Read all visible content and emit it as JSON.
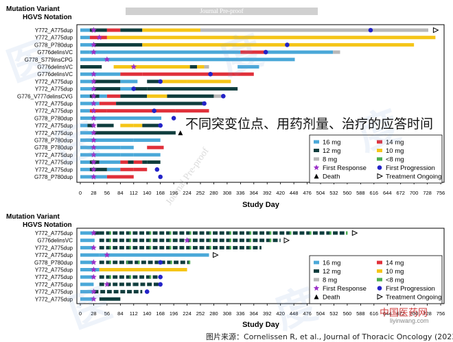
{
  "page": {
    "journal_banner": "Journal Pre-proof",
    "overlay_text_cn": "不同突变位点、用药剂量、治疗的应答时间",
    "source_text": "图片来源：Cornelissen R, et al., Journal of Thoracic Oncology (2023).",
    "diagonal_watermark": "Journal Pre-proof",
    "site_watermark": "中国医药网",
    "site_url": "liyinwang.com",
    "watermark_chars": [
      "医",
      "度",
      "医",
      "度",
      "医",
      "度"
    ]
  },
  "colors": {
    "16 mg": "#4aa8d8",
    "14 mg": "#e0303a",
    "12 mg": "#0f3d3d",
    "10 mg": "#f5c518",
    "8 mg": "#b8b8b8",
    "<8 mg": "#4caf50",
    "first_response": "#9b30c8",
    "first_progression": "#2323c8",
    "death": "#000000"
  },
  "chart_data": [
    {
      "type": "swimmer",
      "title": "",
      "ylabel": "Mutation Variant\nHGVS Notation",
      "ylabel_lines": [
        "Mutation Variant",
        "HGVS Notation"
      ],
      "xlabel": "Study Day",
      "xlim": [
        0,
        770
      ],
      "xticks": [
        0,
        28,
        56,
        84,
        112,
        140,
        168,
        196,
        224,
        252,
        280,
        308,
        336,
        364,
        392,
        420,
        448,
        476,
        504,
        532,
        560,
        588,
        616,
        644,
        672,
        700,
        728,
        756
      ],
      "legend": {
        "placement": "bottom-right",
        "entries": [
          "16 mg",
          "14 mg",
          "12 mg",
          "10 mg",
          "8 mg",
          "<8 mg",
          "First Response",
          "First Progression",
          "Death",
          "Treatment Ongoing"
        ]
      },
      "rows": [
        {
          "label": "Y772_A775dup",
          "segments": [
            [
              0,
              20,
              "16 mg"
            ],
            [
              20,
              56,
              "12 mg"
            ],
            [
              56,
              84,
              "14 mg"
            ],
            [
              84,
              130,
              "12 mg"
            ],
            [
              130,
              252,
              "10 mg"
            ],
            [
              252,
              730,
              "8 mg"
            ]
          ],
          "first_response": 28,
          "first_progression": 609,
          "ongoing": 745
        },
        {
          "label": "Y772_A775dup",
          "segments": [
            [
              0,
              20,
              "16 mg"
            ],
            [
              20,
              56,
              "14 mg"
            ],
            [
              56,
              745,
              "10 mg"
            ]
          ],
          "dashed_from": 112,
          "first_response": 40
        },
        {
          "label": "G778_P780dup",
          "segments": [
            [
              0,
              28,
              "16 mg"
            ],
            [
              28,
              130,
              "12 mg"
            ],
            [
              130,
              700,
              "10 mg"
            ]
          ],
          "first_response": 28,
          "first_progression": 434
        },
        {
          "label": "G776delinsVC",
          "segments": [
            [
              0,
              20,
              "16 mg"
            ],
            [
              20,
              336,
              "16 mg"
            ],
            [
              336,
              392,
              "14 mg"
            ],
            [
              392,
              530,
              "16 mg"
            ],
            [
              530,
              545,
              "8 mg"
            ]
          ],
          "first_response": 28,
          "first_progression": 389
        },
        {
          "label": "G778_S779insCPG",
          "segments": [
            [
              0,
              450,
              "16 mg"
            ]
          ],
          "first_response": 56
        },
        {
          "label": "G776delinsVC",
          "segments": [
            [
              0,
              45,
              "12 mg"
            ],
            [
              70,
              112,
              "10 mg"
            ],
            [
              112,
              230,
              "10 mg"
            ],
            [
              230,
              245,
              "12 mg"
            ],
            [
              245,
              260,
              "10 mg"
            ],
            [
              260,
              270,
              "8 mg"
            ],
            [
              330,
              375,
              "16 mg"
            ]
          ],
          "first_response": 112
        },
        {
          "label": "G776delinsVC",
          "segments": [
            [
              0,
              84,
              "16 mg"
            ],
            [
              84,
              130,
              "14 mg"
            ],
            [
              130,
              364,
              "14 mg"
            ]
          ],
          "first_response": 28,
          "first_progression": 273
        },
        {
          "label": "Y772_A775dup",
          "segments": [
            [
              0,
              28,
              "16 mg"
            ],
            [
              28,
              84,
              "12 mg"
            ],
            [
              84,
              120,
              "16 mg"
            ],
            [
              140,
              168,
              "12 mg"
            ],
            [
              168,
              224,
              "10 mg"
            ],
            [
              224,
              316,
              "10 mg"
            ]
          ],
          "first_response": 28,
          "first_progression": 168
        },
        {
          "label": "Y772_A775dup",
          "segments": [
            [
              0,
              28,
              "16 mg"
            ],
            [
              28,
              84,
              "12 mg"
            ],
            [
              84,
              112,
              "16 mg"
            ],
            [
              112,
              140,
              "12 mg"
            ],
            [
              140,
              330,
              "12 mg"
            ]
          ],
          "first_response": 28,
          "first_progression": 112
        },
        {
          "label": "G776_V777delinsCVG",
          "segments": [
            [
              0,
              20,
              "16 mg"
            ],
            [
              20,
              40,
              "12 mg"
            ],
            [
              40,
              56,
              "16 mg"
            ],
            [
              56,
              84,
              "14 mg"
            ],
            [
              84,
              140,
              "12 mg"
            ],
            [
              140,
              182,
              "10 mg"
            ],
            [
              182,
              280,
              "12 mg"
            ],
            [
              280,
              300,
              "8 mg"
            ]
          ],
          "first_response": 28,
          "first_progression": 300
        },
        {
          "label": "Y772_A775dup",
          "segments": [
            [
              0,
              40,
              "16 mg"
            ],
            [
              40,
              75,
              "14 mg"
            ],
            [
              75,
              260,
              "12 mg"
            ]
          ],
          "first_response": 28,
          "first_progression": 260
        },
        {
          "label": "Y772_A775dup",
          "segments": [
            [
              0,
              20,
              "16 mg"
            ],
            [
              20,
              56,
              "14 mg"
            ],
            [
              56,
              200,
              "14 mg"
            ],
            [
              200,
              270,
              "14 mg"
            ]
          ],
          "first_response": 28,
          "first_progression": 155
        },
        {
          "label": "G778_P780dup",
          "segments": [
            [
              0,
              28,
              "16 mg"
            ],
            [
              28,
              170,
              "16 mg"
            ]
          ],
          "first_response": 28,
          "first_progression": 196
        },
        {
          "label": "Y772_A775dup",
          "segments": [
            [
              0,
              15,
              "16 mg"
            ],
            [
              15,
              28,
              "12 mg"
            ],
            [
              35,
              70,
              "12 mg"
            ],
            [
              84,
              112,
              "10 mg"
            ],
            [
              112,
              130,
              "10 mg"
            ],
            [
              130,
              168,
              "12 mg"
            ]
          ],
          "first_response": 28,
          "first_progression": 168
        },
        {
          "label": "Y772_A775dup",
          "segments": [
            [
              0,
              28,
              "16 mg"
            ],
            [
              28,
              200,
              "12 mg"
            ]
          ],
          "first_response": 28,
          "death": 210
        },
        {
          "label": "G778_P780dup",
          "segments": [
            [
              0,
              28,
              "16 mg"
            ],
            [
              28,
              112,
              "16 mg"
            ],
            [
              112,
              168,
              "16 mg"
            ]
          ],
          "first_response": 28
        },
        {
          "label": "G778_P780dup",
          "segments": [
            [
              0,
              28,
              "16 mg"
            ],
            [
              28,
              84,
              "16 mg"
            ],
            [
              84,
              112,
              "16 mg"
            ],
            [
              140,
              175,
              "14 mg"
            ]
          ],
          "first_response": 28
        },
        {
          "label": "Y772_A775dup",
          "segments": [
            [
              0,
              28,
              "16 mg"
            ],
            [
              28,
              84,
              "16 mg"
            ],
            [
              84,
              112,
              "16 mg"
            ],
            [
              112,
              168,
              "16 mg"
            ]
          ],
          "first_response": 28
        },
        {
          "label": "Y772_A775dup",
          "segments": [
            [
              0,
              20,
              "16 mg"
            ],
            [
              20,
              40,
              "12 mg"
            ],
            [
              40,
              84,
              "16 mg"
            ],
            [
              84,
              100,
              "14 mg"
            ],
            [
              100,
              112,
              "12 mg"
            ],
            [
              112,
              130,
              "14 mg"
            ],
            [
              130,
              140,
              "12 mg"
            ],
            [
              140,
              168,
              "12 mg"
            ]
          ],
          "first_response": 28
        },
        {
          "label": "Y772_A775dup",
          "segments": [
            [
              0,
              20,
              "16 mg"
            ],
            [
              20,
              56,
              "12 mg"
            ],
            [
              56,
              84,
              "16 mg"
            ],
            [
              84,
              112,
              "14 mg"
            ],
            [
              112,
              140,
              "14 mg"
            ]
          ],
          "first_response": 28,
          "first_progression": 161
        },
        {
          "label": "G778_P780dup",
          "segments": [
            [
              0,
              28,
              "16 mg"
            ],
            [
              28,
              56,
              "16 mg"
            ],
            [
              56,
              112,
              "14 mg"
            ]
          ],
          "first_response": 28,
          "first_progression": 168
        }
      ]
    },
    {
      "type": "swimmer",
      "title": "",
      "ylabel": "Mutation Variant\nHGVS Notation",
      "ylabel_lines": [
        "Mutation Variant",
        "HGVS Notation"
      ],
      "xlabel": "Study Day",
      "xlim": [
        0,
        770
      ],
      "xticks": [
        0,
        28,
        56,
        84,
        112,
        140,
        168,
        196,
        224,
        252,
        280,
        308,
        336,
        364,
        392,
        420,
        448,
        476,
        504,
        532,
        560,
        588,
        616,
        644,
        672,
        700,
        728,
        756
      ],
      "legend": {
        "placement": "bottom-right",
        "entries": [
          "16 mg",
          "14 mg",
          "12 mg",
          "10 mg",
          "8 mg",
          "<8 mg",
          "First Response",
          "First Progression",
          "Death",
          "Treatment Ongoing"
        ]
      },
      "rows": [
        {
          "label": "Y772_A775dup",
          "segments": [
            [
              0,
              28,
              "16 mg"
            ],
            [
              28,
              40,
              "12 mg"
            ],
            [
              40,
              560,
              "12 mg"
            ]
          ],
          "dashed_from": 40,
          "first_response": 28,
          "ongoing": 575,
          "green_dots": true
        },
        {
          "label": "G776delinsVC",
          "segments": [
            [
              0,
              30,
              "16 mg"
            ],
            [
              40,
              420,
              "12 mg"
            ]
          ],
          "dashed_from": 40,
          "first_response": 224,
          "ongoing": 432,
          "green_dots": true
        },
        {
          "label": "Y772_A775dup",
          "segments": [
            [
              0,
              28,
              "16 mg"
            ],
            [
              40,
              380,
              "12 mg"
            ]
          ],
          "dashed_from": 40,
          "first_response": 28,
          "green_dots": true
        },
        {
          "label": "Y772_A775dup",
          "segments": [
            [
              0,
              40,
              "16 mg"
            ],
            [
              40,
              270,
              "16 mg"
            ]
          ],
          "first_response": 56,
          "ongoing": 283
        },
        {
          "label": "G778_P780dup",
          "segments": [
            [
              0,
              28,
              "16 mg"
            ],
            [
              40,
              100,
              "12 mg"
            ],
            [
              100,
              168,
              "12 mg"
            ],
            [
              168,
              230,
              "12 mg"
            ]
          ],
          "dashed_from": 40,
          "first_response": 28,
          "first_progression": 168,
          "green_dots": true
        },
        {
          "label": "Y772_A775dup",
          "segments": [
            [
              0,
              40,
              "16 mg"
            ],
            [
              40,
              224,
              "10 mg"
            ]
          ],
          "first_response": 28
        },
        {
          "label": "Y772_A775dup",
          "segments": [
            [
              0,
              28,
              "16 mg"
            ],
            [
              40,
              168,
              "12 mg"
            ]
          ],
          "dashed_from": 40,
          "first_response": 28,
          "first_progression": 168,
          "green_dots": true
        },
        {
          "label": "Y772_A775dup",
          "segments": [
            [
              0,
              28,
              "16 mg"
            ],
            [
              40,
              112,
              "12 mg"
            ],
            [
              112,
              168,
              "12 mg"
            ]
          ],
          "dashed_from": 40,
          "first_response": 56,
          "first_progression": 168
        },
        {
          "label": "Y772_A775dup",
          "segments": [
            [
              0,
              28,
              "16 mg"
            ],
            [
              28,
              56,
              "12 mg"
            ],
            [
              56,
              130,
              "12 mg"
            ]
          ],
          "dashed_from": 28,
          "first_response": 28,
          "first_progression": 140
        },
        {
          "label": "Y772_A775dup",
          "segments": [
            [
              0,
              28,
              "16 mg"
            ],
            [
              40,
              84,
              "12 mg"
            ]
          ],
          "first_response": 28
        }
      ]
    }
  ]
}
